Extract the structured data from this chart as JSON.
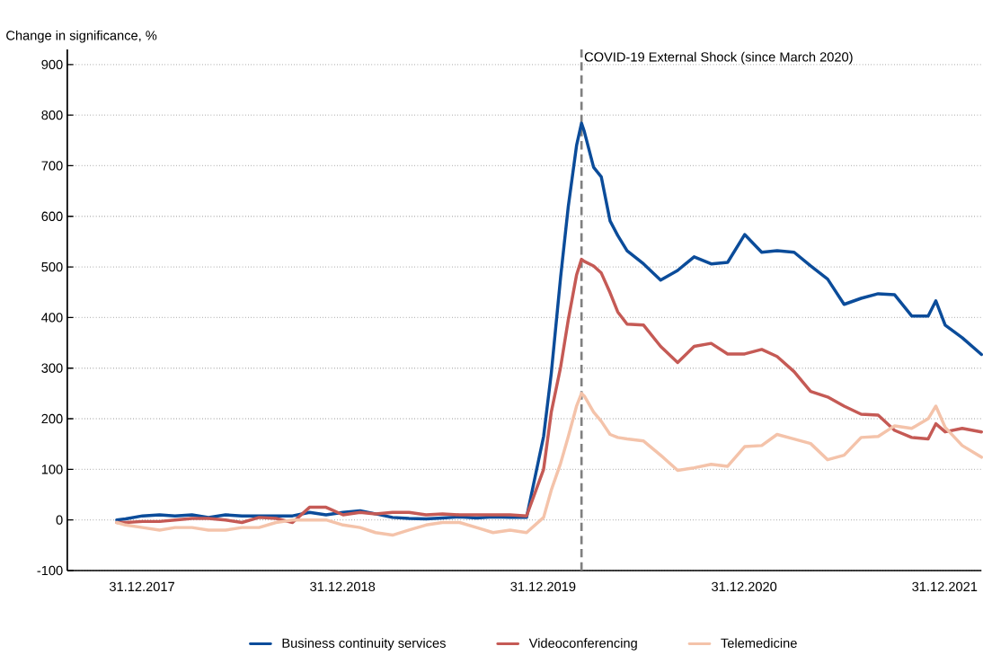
{
  "chart_data": {
    "type": "line",
    "ylabel": "Change in significance, %",
    "x": [
      "2017-11-15",
      "2017-12-01",
      "2018-01-01",
      "2018-02-01",
      "2018-03-01",
      "2018-04-01",
      "2018-05-01",
      "2018-06-01",
      "2018-07-01",
      "2018-08-01",
      "2018-09-01",
      "2018-10-01",
      "2018-11-01",
      "2018-12-01",
      "2019-01-01",
      "2019-02-01",
      "2019-03-01",
      "2019-04-01",
      "2019-05-01",
      "2019-06-01",
      "2019-07-01",
      "2019-08-01",
      "2019-09-01",
      "2019-10-01",
      "2019-11-01",
      "2019-12-01",
      "2020-01-01",
      "2020-01-15",
      "2020-02-01",
      "2020-02-15",
      "2020-03-01",
      "2020-03-10",
      "2020-03-15",
      "2020-04-01",
      "2020-04-15",
      "2020-05-01",
      "2020-05-15",
      "2020-06-01",
      "2020-07-01",
      "2020-08-01",
      "2020-09-01",
      "2020-10-01",
      "2020-11-01",
      "2020-12-01",
      "2021-01-01",
      "2021-02-01",
      "2021-03-01",
      "2021-04-01",
      "2021-05-01",
      "2021-06-01",
      "2021-07-01",
      "2021-08-01",
      "2021-09-01",
      "2021-10-01",
      "2021-11-01",
      "2021-12-01",
      "2021-12-15",
      "2022-01-01",
      "2022-02-01",
      "2022-03-08"
    ],
    "series": [
      {
        "name": "Business continuity services",
        "color": "#0b4c9a",
        "values": [
          0,
          2,
          8,
          10,
          8,
          10,
          5,
          10,
          8,
          8,
          8,
          8,
          15,
          10,
          15,
          18,
          12,
          5,
          3,
          2,
          4,
          6,
          4,
          6,
          5,
          5,
          165,
          290,
          480,
          620,
          740,
          784,
          768,
          697,
          678,
          591,
          562,
          532,
          506,
          474,
          493,
          520,
          506,
          509,
          564,
          529,
          532,
          529,
          502,
          476,
          426,
          438,
          447,
          445,
          403,
          403,
          433,
          385,
          360,
          327
        ]
      },
      {
        "name": "Videoconferencing",
        "color": "#c55a55",
        "values": [
          -5,
          -5,
          -3,
          -3,
          0,
          3,
          3,
          0,
          -5,
          5,
          3,
          -5,
          25,
          25,
          10,
          15,
          12,
          15,
          15,
          10,
          12,
          10,
          10,
          10,
          10,
          8,
          100,
          213,
          302,
          396,
          484,
          515,
          511,
          502,
          488,
          449,
          411,
          387,
          385,
          343,
          311,
          343,
          349,
          328,
          328,
          337,
          323,
          293,
          254,
          243,
          225,
          209,
          207,
          177,
          163,
          160,
          190,
          174,
          181,
          174
        ]
      },
      {
        "name": "Telemedicine",
        "color": "#f4c3aa",
        "values": [
          -5,
          -10,
          -15,
          -20,
          -15,
          -15,
          -20,
          -20,
          -15,
          -15,
          -5,
          0,
          0,
          0,
          -10,
          -15,
          -25,
          -30,
          -20,
          -10,
          -5,
          -5,
          -15,
          -25,
          -20,
          -25,
          5,
          59,
          112,
          165,
          225,
          250,
          245,
          213,
          195,
          169,
          163,
          160,
          156,
          128,
          98,
          103,
          110,
          106,
          145,
          147,
          169,
          160,
          151,
          119,
          128,
          163,
          165,
          186,
          181,
          200,
          225,
          183,
          147,
          124
        ]
      }
    ],
    "xlim": [
      "2017-08-17",
      "2022-03-08"
    ],
    "xticks": [
      {
        "value": "2017-12-31",
        "label": "31.12.2017"
      },
      {
        "value": "2018-12-31",
        "label": "31.12.2018"
      },
      {
        "value": "2019-12-31",
        "label": "31.12.2019"
      },
      {
        "value": "2020-12-31",
        "label": "31.12.2020"
      },
      {
        "value": "2021-12-31",
        "label": "31.12.2021"
      }
    ],
    "ylim": [
      -100,
      930
    ],
    "yticks": [
      -100,
      0,
      100,
      200,
      300,
      400,
      500,
      600,
      700,
      800,
      900
    ],
    "grid": "y",
    "legend": "bottom",
    "marker": "none",
    "line_style": "solid",
    "ref_lines": [
      {
        "axis": "x",
        "value": "2020-03-10",
        "label": "COVID-19 External Shock (since March 2020)",
        "color": "#808080",
        "line_style": "dashed"
      }
    ]
  }
}
